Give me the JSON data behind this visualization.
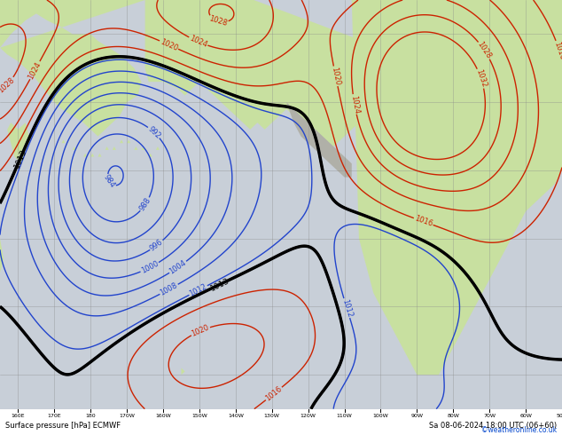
{
  "title_left": "Surface pressure [hPa] ECMWF",
  "title_right": "Sa 08-06-2024 18:00 UTC (06+60)",
  "copyright": "©weatheronline.co.uk",
  "bg_ocean": "#c8cfd8",
  "bg_land_green": "#c8e0a0",
  "bg_land_gray": "#b0b0a8",
  "grid_color": "#888888",
  "figsize": [
    6.34,
    4.9
  ],
  "dpi": 100,
  "lon_min": 155,
  "lon_max": 310,
  "lat_min": 15,
  "lat_max": 75
}
